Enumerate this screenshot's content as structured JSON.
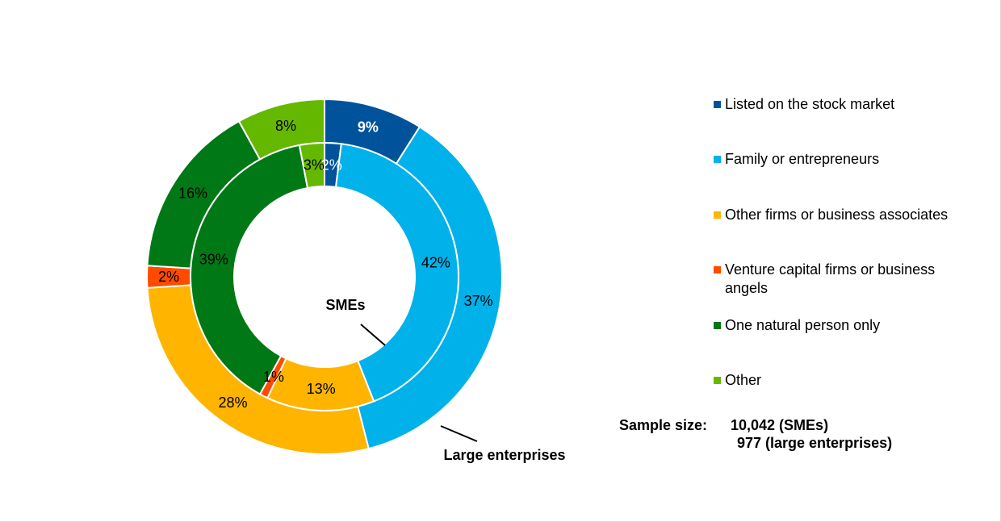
{
  "chart_data": {
    "type": "pie",
    "subtype": "donut",
    "categories": [
      "Listed on the stock market",
      "Family or entrepreneurs",
      "Other firms or business associates",
      "Venture capital firms or business angels",
      "One natural person only",
      "Other"
    ],
    "colors": [
      "#00539b",
      "#00b1ea",
      "#ffb400",
      "#ff4b00",
      "#007816",
      "#65b800"
    ],
    "series": [
      {
        "name": "SMEs",
        "ring": "inner",
        "values": [
          2,
          42,
          13,
          1,
          39,
          3
        ],
        "labels": [
          "2%",
          "42%",
          "13%",
          "1%",
          "39%",
          "3%"
        ]
      },
      {
        "name": "Large enterprises",
        "ring": "outer",
        "values": [
          9,
          37,
          28,
          2,
          16,
          8
        ],
        "labels": [
          "9%",
          "37%",
          "28%",
          "2%",
          "16%",
          "8%"
        ]
      }
    ],
    "legend_position": "right"
  },
  "sample": {
    "label": "Sample size:",
    "smes": "10,042 (SMEs)",
    "large": "977 (large enterprises)"
  }
}
